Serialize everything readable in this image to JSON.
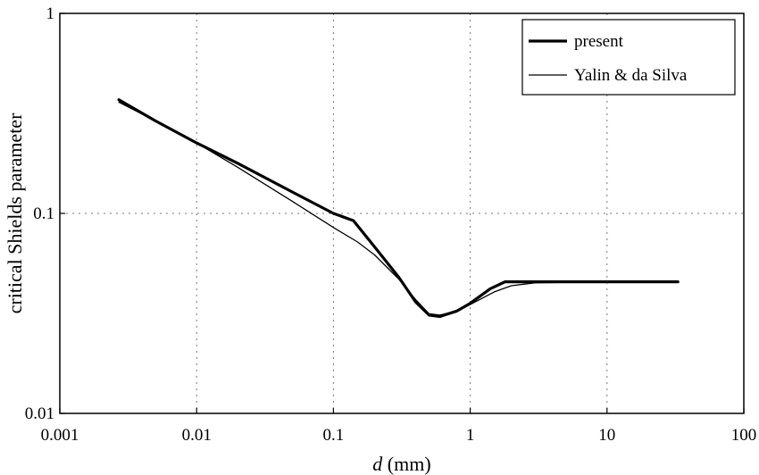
{
  "chart_data": {
    "type": "line",
    "xlabel_italic": "d",
    "xlabel_rest": " (mm)",
    "ylabel": "critical Shields parameter",
    "xscale": "log",
    "yscale": "log",
    "xlim": [
      0.001,
      100
    ],
    "ylim": [
      0.01,
      1
    ],
    "x_ticks": [
      {
        "value": 0.001,
        "label": "0.001"
      },
      {
        "value": 0.01,
        "label": "0.01"
      },
      {
        "value": 0.1,
        "label": "0.1"
      },
      {
        "value": 1,
        "label": "1"
      },
      {
        "value": 10,
        "label": "10"
      },
      {
        "value": 100,
        "label": "100"
      }
    ],
    "y_ticks": [
      {
        "value": 0.01,
        "label": "0.01"
      },
      {
        "value": 0.1,
        "label": "0.1"
      },
      {
        "value": 1,
        "label": "1"
      }
    ],
    "grid": true,
    "legend_position": "top-right",
    "series": [
      {
        "name": "present",
        "style": "thick",
        "color": "#000000",
        "points": [
          [
            0.0027,
            0.37
          ],
          [
            0.005,
            0.29
          ],
          [
            0.01,
            0.225
          ],
          [
            0.02,
            0.178
          ],
          [
            0.05,
            0.128
          ],
          [
            0.1,
            0.1
          ],
          [
            0.14,
            0.092
          ],
          [
            0.2,
            0.068
          ],
          [
            0.3,
            0.048
          ],
          [
            0.4,
            0.036
          ],
          [
            0.5,
            0.031
          ],
          [
            0.6,
            0.0305
          ],
          [
            0.8,
            0.0325
          ],
          [
            1.0,
            0.0355
          ],
          [
            1.4,
            0.042
          ],
          [
            1.8,
            0.0455
          ],
          [
            3.0,
            0.0455
          ],
          [
            10,
            0.0455
          ],
          [
            33,
            0.0455
          ]
        ]
      },
      {
        "name": "Yalin & da Silva",
        "style": "thin",
        "color": "#000000",
        "points": [
          [
            0.0027,
            0.36
          ],
          [
            0.005,
            0.29
          ],
          [
            0.01,
            0.225
          ],
          [
            0.02,
            0.17
          ],
          [
            0.05,
            0.115
          ],
          [
            0.1,
            0.085
          ],
          [
            0.15,
            0.072
          ],
          [
            0.2,
            0.062
          ],
          [
            0.3,
            0.047
          ],
          [
            0.4,
            0.037
          ],
          [
            0.5,
            0.0315
          ],
          [
            0.6,
            0.031
          ],
          [
            0.8,
            0.0325
          ],
          [
            1.0,
            0.035
          ],
          [
            1.5,
            0.0405
          ],
          [
            2.0,
            0.0435
          ],
          [
            3.0,
            0.045
          ],
          [
            10,
            0.0455
          ],
          [
            33,
            0.0455
          ]
        ]
      }
    ]
  }
}
